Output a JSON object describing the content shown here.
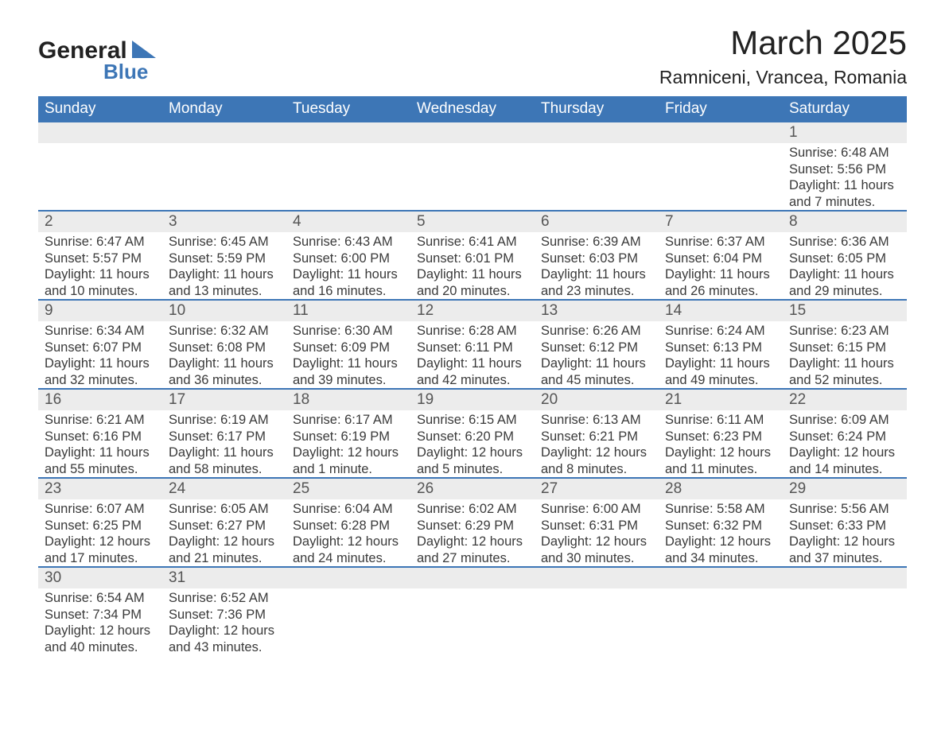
{
  "brand": {
    "line1": "General",
    "line2": "Blue"
  },
  "title": "March 2025",
  "location": "Ramniceni, Vrancea, Romania",
  "colors": {
    "header_bg": "#3d76b6",
    "header_text": "#ffffff",
    "daynum_bg": "#ececec",
    "row_divider": "#3d76b6",
    "body_text": "#3a3a3a",
    "background": "#ffffff",
    "brand_blue": "#3d76b6"
  },
  "typography": {
    "title_fontsize": 42,
    "location_fontsize": 23,
    "weekday_fontsize": 19,
    "daynum_fontsize": 19,
    "detail_fontsize": 16.5,
    "font_family": "Arial"
  },
  "weekdays": [
    "Sunday",
    "Monday",
    "Tuesday",
    "Wednesday",
    "Thursday",
    "Friday",
    "Saturday"
  ],
  "weeks": [
    [
      null,
      null,
      null,
      null,
      null,
      null,
      {
        "day": "1",
        "sunrise": "Sunrise: 6:48 AM",
        "sunset": "Sunset: 5:56 PM",
        "daylight1": "Daylight: 11 hours",
        "daylight2": "and 7 minutes."
      }
    ],
    [
      {
        "day": "2",
        "sunrise": "Sunrise: 6:47 AM",
        "sunset": "Sunset: 5:57 PM",
        "daylight1": "Daylight: 11 hours",
        "daylight2": "and 10 minutes."
      },
      {
        "day": "3",
        "sunrise": "Sunrise: 6:45 AM",
        "sunset": "Sunset: 5:59 PM",
        "daylight1": "Daylight: 11 hours",
        "daylight2": "and 13 minutes."
      },
      {
        "day": "4",
        "sunrise": "Sunrise: 6:43 AM",
        "sunset": "Sunset: 6:00 PM",
        "daylight1": "Daylight: 11 hours",
        "daylight2": "and 16 minutes."
      },
      {
        "day": "5",
        "sunrise": "Sunrise: 6:41 AM",
        "sunset": "Sunset: 6:01 PM",
        "daylight1": "Daylight: 11 hours",
        "daylight2": "and 20 minutes."
      },
      {
        "day": "6",
        "sunrise": "Sunrise: 6:39 AM",
        "sunset": "Sunset: 6:03 PM",
        "daylight1": "Daylight: 11 hours",
        "daylight2": "and 23 minutes."
      },
      {
        "day": "7",
        "sunrise": "Sunrise: 6:37 AM",
        "sunset": "Sunset: 6:04 PM",
        "daylight1": "Daylight: 11 hours",
        "daylight2": "and 26 minutes."
      },
      {
        "day": "8",
        "sunrise": "Sunrise: 6:36 AM",
        "sunset": "Sunset: 6:05 PM",
        "daylight1": "Daylight: 11 hours",
        "daylight2": "and 29 minutes."
      }
    ],
    [
      {
        "day": "9",
        "sunrise": "Sunrise: 6:34 AM",
        "sunset": "Sunset: 6:07 PM",
        "daylight1": "Daylight: 11 hours",
        "daylight2": "and 32 minutes."
      },
      {
        "day": "10",
        "sunrise": "Sunrise: 6:32 AM",
        "sunset": "Sunset: 6:08 PM",
        "daylight1": "Daylight: 11 hours",
        "daylight2": "and 36 minutes."
      },
      {
        "day": "11",
        "sunrise": "Sunrise: 6:30 AM",
        "sunset": "Sunset: 6:09 PM",
        "daylight1": "Daylight: 11 hours",
        "daylight2": "and 39 minutes."
      },
      {
        "day": "12",
        "sunrise": "Sunrise: 6:28 AM",
        "sunset": "Sunset: 6:11 PM",
        "daylight1": "Daylight: 11 hours",
        "daylight2": "and 42 minutes."
      },
      {
        "day": "13",
        "sunrise": "Sunrise: 6:26 AM",
        "sunset": "Sunset: 6:12 PM",
        "daylight1": "Daylight: 11 hours",
        "daylight2": "and 45 minutes."
      },
      {
        "day": "14",
        "sunrise": "Sunrise: 6:24 AM",
        "sunset": "Sunset: 6:13 PM",
        "daylight1": "Daylight: 11 hours",
        "daylight2": "and 49 minutes."
      },
      {
        "day": "15",
        "sunrise": "Sunrise: 6:23 AM",
        "sunset": "Sunset: 6:15 PM",
        "daylight1": "Daylight: 11 hours",
        "daylight2": "and 52 minutes."
      }
    ],
    [
      {
        "day": "16",
        "sunrise": "Sunrise: 6:21 AM",
        "sunset": "Sunset: 6:16 PM",
        "daylight1": "Daylight: 11 hours",
        "daylight2": "and 55 minutes."
      },
      {
        "day": "17",
        "sunrise": "Sunrise: 6:19 AM",
        "sunset": "Sunset: 6:17 PM",
        "daylight1": "Daylight: 11 hours",
        "daylight2": "and 58 minutes."
      },
      {
        "day": "18",
        "sunrise": "Sunrise: 6:17 AM",
        "sunset": "Sunset: 6:19 PM",
        "daylight1": "Daylight: 12 hours",
        "daylight2": "and 1 minute."
      },
      {
        "day": "19",
        "sunrise": "Sunrise: 6:15 AM",
        "sunset": "Sunset: 6:20 PM",
        "daylight1": "Daylight: 12 hours",
        "daylight2": "and 5 minutes."
      },
      {
        "day": "20",
        "sunrise": "Sunrise: 6:13 AM",
        "sunset": "Sunset: 6:21 PM",
        "daylight1": "Daylight: 12 hours",
        "daylight2": "and 8 minutes."
      },
      {
        "day": "21",
        "sunrise": "Sunrise: 6:11 AM",
        "sunset": "Sunset: 6:23 PM",
        "daylight1": "Daylight: 12 hours",
        "daylight2": "and 11 minutes."
      },
      {
        "day": "22",
        "sunrise": "Sunrise: 6:09 AM",
        "sunset": "Sunset: 6:24 PM",
        "daylight1": "Daylight: 12 hours",
        "daylight2": "and 14 minutes."
      }
    ],
    [
      {
        "day": "23",
        "sunrise": "Sunrise: 6:07 AM",
        "sunset": "Sunset: 6:25 PM",
        "daylight1": "Daylight: 12 hours",
        "daylight2": "and 17 minutes."
      },
      {
        "day": "24",
        "sunrise": "Sunrise: 6:05 AM",
        "sunset": "Sunset: 6:27 PM",
        "daylight1": "Daylight: 12 hours",
        "daylight2": "and 21 minutes."
      },
      {
        "day": "25",
        "sunrise": "Sunrise: 6:04 AM",
        "sunset": "Sunset: 6:28 PM",
        "daylight1": "Daylight: 12 hours",
        "daylight2": "and 24 minutes."
      },
      {
        "day": "26",
        "sunrise": "Sunrise: 6:02 AM",
        "sunset": "Sunset: 6:29 PM",
        "daylight1": "Daylight: 12 hours",
        "daylight2": "and 27 minutes."
      },
      {
        "day": "27",
        "sunrise": "Sunrise: 6:00 AM",
        "sunset": "Sunset: 6:31 PM",
        "daylight1": "Daylight: 12 hours",
        "daylight2": "and 30 minutes."
      },
      {
        "day": "28",
        "sunrise": "Sunrise: 5:58 AM",
        "sunset": "Sunset: 6:32 PM",
        "daylight1": "Daylight: 12 hours",
        "daylight2": "and 34 minutes."
      },
      {
        "day": "29",
        "sunrise": "Sunrise: 5:56 AM",
        "sunset": "Sunset: 6:33 PM",
        "daylight1": "Daylight: 12 hours",
        "daylight2": "and 37 minutes."
      }
    ],
    [
      {
        "day": "30",
        "sunrise": "Sunrise: 6:54 AM",
        "sunset": "Sunset: 7:34 PM",
        "daylight1": "Daylight: 12 hours",
        "daylight2": "and 40 minutes."
      },
      {
        "day": "31",
        "sunrise": "Sunrise: 6:52 AM",
        "sunset": "Sunset: 7:36 PM",
        "daylight1": "Daylight: 12 hours",
        "daylight2": "and 43 minutes."
      },
      null,
      null,
      null,
      null,
      null
    ]
  ]
}
